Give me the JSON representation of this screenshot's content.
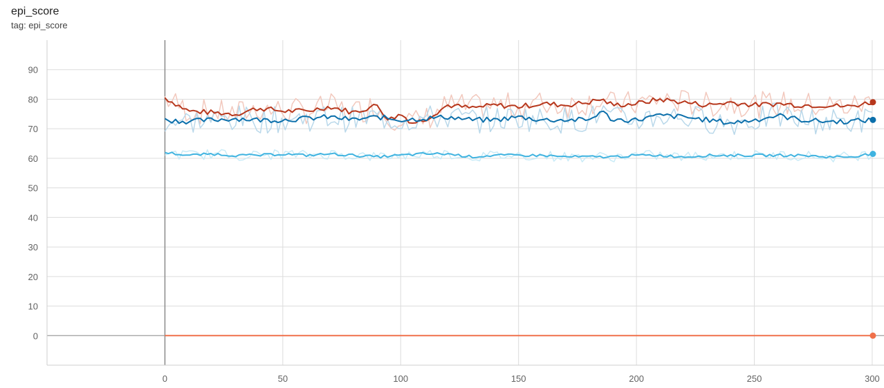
{
  "header": {
    "title": "epi_score",
    "subtitle": "tag: epi_score"
  },
  "chart_data": {
    "type": "line",
    "title": "epi_score",
    "subtitle": "tag: epi_score",
    "xlabel": "",
    "ylabel": "",
    "xlim": [
      -50,
      305
    ],
    "ylim": [
      -10,
      100
    ],
    "x_ticks": [
      0,
      50,
      100,
      150,
      200,
      250,
      300
    ],
    "y_ticks": [
      0,
      10,
      20,
      30,
      40,
      50,
      60,
      70,
      80,
      90
    ],
    "grid": true,
    "legend": "none",
    "series": [
      {
        "color": "#b7371c",
        "raw_color": "#f2c8bd",
        "x": [
          0,
          10,
          20,
          30,
          40,
          50,
          60,
          70,
          80,
          90,
          95,
          100,
          105,
          110,
          120,
          130,
          140,
          150,
          160,
          170,
          180,
          185,
          190,
          200,
          210,
          220,
          230,
          240,
          250,
          260,
          270,
          280,
          290,
          300
        ],
        "values": [
          80.5,
          76,
          75.5,
          75,
          77,
          76,
          76,
          77.5,
          75.5,
          78,
          73,
          75,
          72,
          73,
          78,
          77,
          78,
          77.5,
          78.5,
          78,
          79,
          80,
          78,
          78.5,
          80,
          79,
          78,
          79,
          78,
          78.5,
          78,
          78,
          77.5,
          79
        ]
      },
      {
        "color": "#0b6fab",
        "raw_color": "#b9d8ea",
        "x": [
          0,
          10,
          20,
          30,
          40,
          50,
          60,
          70,
          80,
          90,
          100,
          110,
          120,
          130,
          140,
          150,
          160,
          170,
          180,
          185,
          190,
          200,
          210,
          220,
          230,
          240,
          250,
          260,
          270,
          280,
          290,
          300
        ],
        "values": [
          73,
          72.5,
          73,
          73.5,
          73,
          73,
          73.5,
          74,
          73,
          74,
          73,
          73.5,
          74,
          73,
          73,
          74,
          73,
          73,
          73,
          76,
          73,
          73,
          74.5,
          74,
          73,
          72,
          73,
          74.5,
          73,
          72.5,
          72.5,
          73
        ]
      },
      {
        "color": "#3fb3e0",
        "raw_color": "#c9ebf7",
        "x": [
          0,
          10,
          20,
          30,
          40,
          50,
          60,
          70,
          80,
          90,
          100,
          110,
          120,
          130,
          140,
          150,
          160,
          170,
          180,
          190,
          200,
          210,
          220,
          230,
          240,
          250,
          260,
          270,
          280,
          290,
          300
        ],
        "values": [
          62,
          61,
          61.5,
          61,
          61,
          61.5,
          61,
          61.5,
          61,
          60.5,
          61,
          61.5,
          61.5,
          60.5,
          61,
          61,
          61,
          60.5,
          60.5,
          60.5,
          61,
          61,
          60.5,
          61,
          61,
          61,
          61,
          61,
          60.5,
          60.5,
          61.5
        ]
      },
      {
        "color": "#f0704a",
        "raw_color": "#f9c8b8",
        "x": [
          0,
          300
        ],
        "values": [
          0,
          0
        ]
      }
    ]
  }
}
